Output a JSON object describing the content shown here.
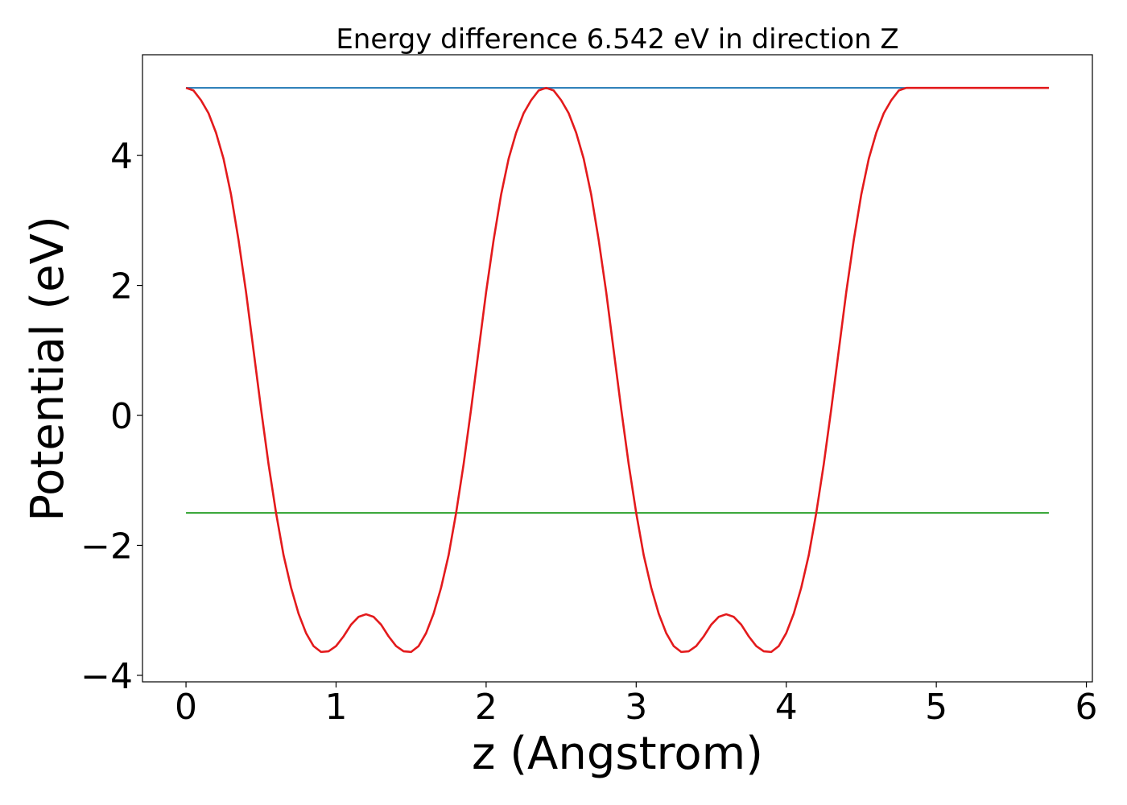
{
  "chart_data": {
    "type": "line",
    "title": "Energy difference 6.542 eV in direction Z",
    "xlabel": "z (Angstrom)",
    "ylabel": "Potential (eV)",
    "xlim": [
      -0.29,
      6.04
    ],
    "ylim": [
      -4.1,
      5.55
    ],
    "xticks": [
      0,
      1,
      2,
      3,
      4,
      5,
      6
    ],
    "yticks": [
      -4,
      -2,
      0,
      2,
      4
    ],
    "xtick_labels": [
      "0",
      "1",
      "2",
      "3",
      "4",
      "5",
      "6"
    ],
    "ytick_labels": [
      "−4",
      "−2",
      "0",
      "2",
      "4"
    ],
    "grid": false,
    "legend": "none",
    "series": [
      {
        "color": "#1f77b4",
        "x": [
          0,
          5.75
        ],
        "y": [
          5.04,
          5.04
        ]
      },
      {
        "color": "#2ca02c",
        "x": [
          0,
          5.75
        ],
        "y": [
          -1.5,
          -1.5
        ]
      },
      {
        "color": "#e31a1c",
        "x": [
          0.0,
          0.05,
          0.1,
          0.15,
          0.2,
          0.25,
          0.3,
          0.35,
          0.4,
          0.45,
          0.5,
          0.55,
          0.6,
          0.65,
          0.7,
          0.75,
          0.8,
          0.85,
          0.9,
          0.95,
          1.0,
          1.05,
          1.1,
          1.15,
          1.2,
          1.25,
          1.3,
          1.35,
          1.4,
          1.45,
          1.5,
          1.55,
          1.6,
          1.65,
          1.7,
          1.75,
          1.8,
          1.85,
          1.9,
          1.95,
          2.0,
          2.05,
          2.1,
          2.15,
          2.2,
          2.25,
          2.3,
          2.35,
          2.4,
          2.45,
          2.5,
          2.55,
          2.6,
          2.65,
          2.7,
          2.75,
          2.8,
          2.85,
          2.9,
          2.95,
          3.0,
          3.05,
          3.1,
          3.15,
          3.2,
          3.25,
          3.3,
          3.35,
          3.4,
          3.45,
          3.5,
          3.55,
          3.6,
          3.65,
          3.7,
          3.75,
          3.8,
          3.85,
          3.9,
          3.95,
          4.0,
          4.05,
          4.1,
          4.15,
          4.2,
          4.25,
          4.3,
          4.35,
          4.4,
          4.45,
          4.5,
          4.55,
          4.6,
          4.65,
          4.7,
          4.75,
          4.8,
          4.85,
          4.9,
          4.95,
          5.0,
          5.05,
          5.1,
          5.15,
          5.2,
          5.25,
          5.3,
          5.35,
          5.4,
          5.45,
          5.5,
          5.55,
          5.6,
          5.65,
          5.7,
          5.75
        ],
        "y": [
          5.04,
          5.0,
          4.85,
          4.65,
          4.35,
          3.95,
          3.4,
          2.7,
          1.9,
          1.0,
          0.1,
          -0.75,
          -1.5,
          -2.15,
          -2.65,
          -3.05,
          -3.35,
          -3.55,
          -3.64,
          -3.63,
          -3.55,
          -3.4,
          -3.22,
          -3.1,
          -3.06,
          -3.1,
          -3.22,
          -3.4,
          -3.55,
          -3.63,
          -3.64,
          -3.55,
          -3.35,
          -3.05,
          -2.65,
          -2.15,
          -1.5,
          -0.75,
          0.1,
          1.0,
          1.9,
          2.7,
          3.4,
          3.95,
          4.35,
          4.65,
          4.85,
          5.0,
          5.04,
          5.0,
          4.85,
          4.65,
          4.35,
          3.95,
          3.4,
          2.7,
          1.9,
          1.0,
          0.1,
          -0.75,
          -1.5,
          -2.15,
          -2.65,
          -3.05,
          -3.35,
          -3.55,
          -3.64,
          -3.63,
          -3.55,
          -3.4,
          -3.22,
          -3.1,
          -3.06,
          -3.1,
          -3.22,
          -3.4,
          -3.55,
          -3.63,
          -3.64,
          -3.55,
          -3.35,
          -3.05,
          -2.65,
          -2.15,
          -1.5,
          -0.75,
          0.1,
          1.0,
          1.9,
          2.7,
          3.4,
          3.95,
          4.35,
          4.65,
          4.85,
          5.0,
          5.04,
          5.04,
          5.04,
          5.04,
          5.04,
          5.04,
          5.04,
          5.04,
          5.04,
          5.04,
          5.04,
          5.04,
          5.04,
          5.04,
          5.04,
          5.04,
          5.04,
          5.04,
          5.04,
          5.04
        ]
      }
    ]
  }
}
